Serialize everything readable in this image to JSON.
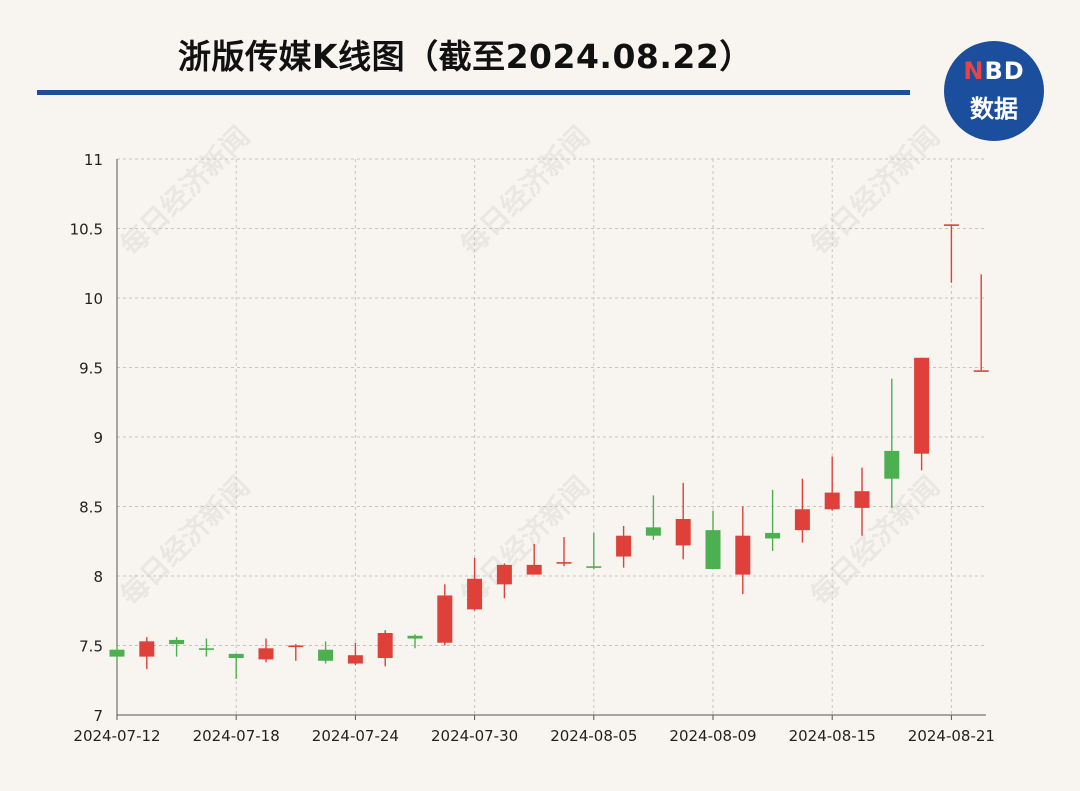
{
  "title": "浙版传媒K线图（截至2024.08.22）",
  "logo": {
    "n": "N",
    "bd": "BD",
    "line2": "数据"
  },
  "watermark": "每日经济新闻",
  "colors": {
    "up": "#e0403a",
    "down": "#4caf50",
    "rule": "#1f4e96",
    "logo": "#1b4e9c"
  },
  "chart_data": {
    "type": "candlestick",
    "ylim": [
      7,
      11
    ],
    "y_ticks": [
      "7",
      "7.5",
      "8",
      "8.5",
      "9",
      "9.5",
      "10",
      "10.5",
      "11"
    ],
    "x_ticks": [
      "2024-07-12",
      "2024-07-18",
      "2024-07-24",
      "2024-07-30",
      "2024-08-05",
      "2024-08-09",
      "2024-08-15",
      "2024-08-21"
    ],
    "grid": true,
    "candles": [
      {
        "date": "2024-07-12",
        "open": 7.47,
        "close": 7.42,
        "high": 7.5,
        "low": 7.38
      },
      {
        "date": "2024-07-15",
        "open": 7.42,
        "close": 7.53,
        "high": 7.56,
        "low": 7.33
      },
      {
        "date": "2024-07-16",
        "open": 7.54,
        "close": 7.51,
        "high": 7.56,
        "low": 7.42
      },
      {
        "date": "2024-07-17",
        "open": 7.48,
        "close": 7.47,
        "high": 7.55,
        "low": 7.42
      },
      {
        "date": "2024-07-18",
        "open": 7.44,
        "close": 7.41,
        "high": 7.44,
        "low": 7.26
      },
      {
        "date": "2024-07-19",
        "open": 7.4,
        "close": 7.48,
        "high": 7.55,
        "low": 7.38
      },
      {
        "date": "2024-07-22",
        "open": 7.49,
        "close": 7.5,
        "high": 7.51,
        "low": 7.39
      },
      {
        "date": "2024-07-23",
        "open": 7.47,
        "close": 7.39,
        "high": 7.53,
        "low": 7.37
      },
      {
        "date": "2024-07-24",
        "open": 7.37,
        "close": 7.43,
        "high": 7.52,
        "low": 7.36
      },
      {
        "date": "2024-07-25",
        "open": 7.41,
        "close": 7.59,
        "high": 7.61,
        "low": 7.35
      },
      {
        "date": "2024-07-26",
        "open": 7.57,
        "close": 7.55,
        "high": 7.58,
        "low": 7.48
      },
      {
        "date": "2024-07-29",
        "open": 7.52,
        "close": 7.86,
        "high": 7.94,
        "low": 7.5
      },
      {
        "date": "2024-07-30",
        "open": 7.76,
        "close": 7.98,
        "high": 8.13,
        "low": 7.75
      },
      {
        "date": "2024-07-31",
        "open": 7.94,
        "close": 8.08,
        "high": 8.09,
        "low": 7.84
      },
      {
        "date": "2024-08-01",
        "open": 8.01,
        "close": 8.08,
        "high": 8.23,
        "low": 8.01
      },
      {
        "date": "2024-08-02",
        "open": 8.09,
        "close": 8.1,
        "high": 8.28,
        "low": 8.07
      },
      {
        "date": "2024-08-05",
        "open": 8.07,
        "close": 8.06,
        "high": 8.31,
        "low": 8.05
      },
      {
        "date": "2024-08-06",
        "open": 8.14,
        "close": 8.29,
        "high": 8.36,
        "low": 8.06
      },
      {
        "date": "2024-08-07",
        "open": 8.35,
        "close": 8.29,
        "high": 8.58,
        "low": 8.26
      },
      {
        "date": "2024-08-08",
        "open": 8.22,
        "close": 8.41,
        "high": 8.67,
        "low": 8.12
      },
      {
        "date": "2024-08-09",
        "open": 8.33,
        "close": 8.05,
        "high": 8.47,
        "low": 8.05
      },
      {
        "date": "2024-08-12",
        "open": 8.01,
        "close": 8.29,
        "high": 8.5,
        "low": 7.87
      },
      {
        "date": "2024-08-13",
        "open": 8.31,
        "close": 8.27,
        "high": 8.62,
        "low": 8.18
      },
      {
        "date": "2024-08-14",
        "open": 8.33,
        "close": 8.48,
        "high": 8.7,
        "low": 8.24
      },
      {
        "date": "2024-08-15",
        "open": 8.48,
        "close": 8.6,
        "high": 8.86,
        "low": 8.47
      },
      {
        "date": "2024-08-16",
        "open": 8.49,
        "close": 8.61,
        "high": 8.78,
        "low": 8.29
      },
      {
        "date": "2024-08-19",
        "open": 8.9,
        "close": 8.7,
        "high": 9.42,
        "low": 8.49
      },
      {
        "date": "2024-08-20",
        "open": 8.88,
        "close": 9.57,
        "high": 9.57,
        "low": 8.76
      },
      {
        "date": "2024-08-21",
        "open": 10.53,
        "close": 10.53,
        "high": 10.53,
        "low": 10.11
      },
      {
        "date": "2024-08-22",
        "open": 9.48,
        "close": 9.48,
        "high": 10.17,
        "low": 9.48
      }
    ]
  }
}
